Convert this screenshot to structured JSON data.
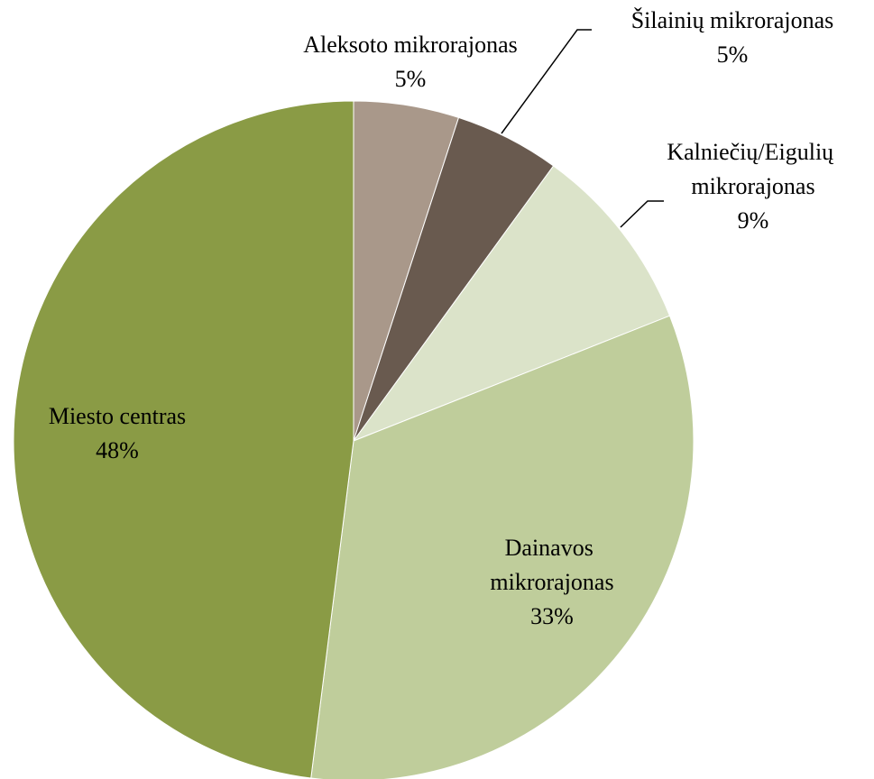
{
  "chart_data": {
    "type": "pie",
    "categories": [
      "Aleksoto mikrorajonas",
      "Šilainių mikrorajonas",
      "Kalniečių/Eigulių mikrorajonas",
      "Dainavos mikrorajonas",
      "Miesto centras"
    ],
    "values": [
      5,
      5,
      9,
      33,
      48
    ],
    "value_labels": [
      "5%",
      "5%",
      "9%",
      "33%",
      "48%"
    ],
    "colors": [
      "#a9988a",
      "#695a4f",
      "#dbe3c9",
      "#bfcd9b",
      "#8a9b45"
    ]
  }
}
